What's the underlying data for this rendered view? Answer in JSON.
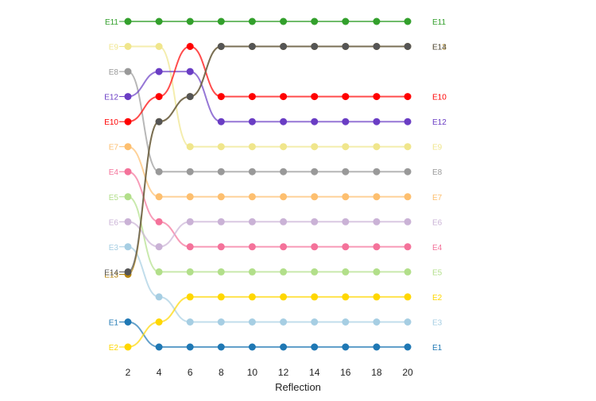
{
  "chart_data": {
    "type": "line",
    "subtype": "bump-chart",
    "xlabel": "Reflection",
    "x": [
      2,
      4,
      6,
      8,
      10,
      12,
      14,
      16,
      18,
      20
    ],
    "x_ticks": [
      2,
      4,
      6,
      8,
      10,
      12,
      14,
      16,
      18,
      20
    ],
    "y_axis": "rank (1 = top), not printed",
    "ylim": [
      1,
      14
    ],
    "grid": false,
    "legend": "series labels at both line ends",
    "series": [
      {
        "name": "E11",
        "color": "#33a02c",
        "values": [
          1,
          1,
          1,
          1,
          1,
          1,
          1,
          1,
          1,
          1
        ]
      },
      {
        "name": "E9",
        "color": "#f0e68c",
        "values": [
          2,
          2,
          6,
          6,
          6,
          6,
          6,
          6,
          6,
          6
        ]
      },
      {
        "name": "E8",
        "color": "#999999",
        "values": [
          3,
          7,
          7,
          7,
          7,
          7,
          7,
          7,
          7,
          7
        ]
      },
      {
        "name": "E12",
        "color": "#6a3dc4",
        "values": [
          4,
          3,
          3,
          5,
          5,
          5,
          5,
          5,
          5,
          5
        ]
      },
      {
        "name": "E10",
        "color": "#ff0000",
        "values": [
          5,
          4,
          2,
          4,
          4,
          4,
          4,
          4,
          4,
          4
        ]
      },
      {
        "name": "E7",
        "color": "#fdbf6f",
        "values": [
          6,
          8,
          8,
          8,
          8,
          8,
          8,
          8,
          8,
          8
        ]
      },
      {
        "name": "E4",
        "color": "#f4729a",
        "values": [
          7,
          9,
          10,
          10,
          10,
          10,
          10,
          10,
          10,
          10
        ]
      },
      {
        "name": "E5",
        "color": "#b2df8a",
        "values": [
          8,
          11,
          11,
          11,
          11,
          11,
          11,
          11,
          11,
          11
        ]
      },
      {
        "name": "E6",
        "color": "#cab2d6",
        "values": [
          9,
          10,
          9,
          9,
          9,
          9,
          9,
          9,
          9,
          9
        ]
      },
      {
        "name": "E3",
        "color": "#a6cee3",
        "values": [
          10,
          12,
          13,
          13,
          13,
          13,
          13,
          13,
          13,
          13
        ]
      },
      {
        "name": "E13",
        "color": "#b8860b",
        "values": [
          11.1,
          5,
          4,
          2,
          2,
          2,
          2,
          2,
          2,
          2
        ]
      },
      {
        "name": "E14",
        "color": "#555555",
        "values": [
          11,
          5,
          4,
          2,
          2,
          2,
          2,
          2,
          2,
          2
        ]
      },
      {
        "name": "E1",
        "color": "#1f78b4",
        "values": [
          13,
          14,
          14,
          14,
          14,
          14,
          14,
          14,
          14,
          14
        ]
      },
      {
        "name": "E2",
        "color": "#ffd700",
        "values": [
          14,
          13,
          12,
          12,
          12,
          12,
          12,
          12,
          12,
          12
        ]
      }
    ]
  }
}
